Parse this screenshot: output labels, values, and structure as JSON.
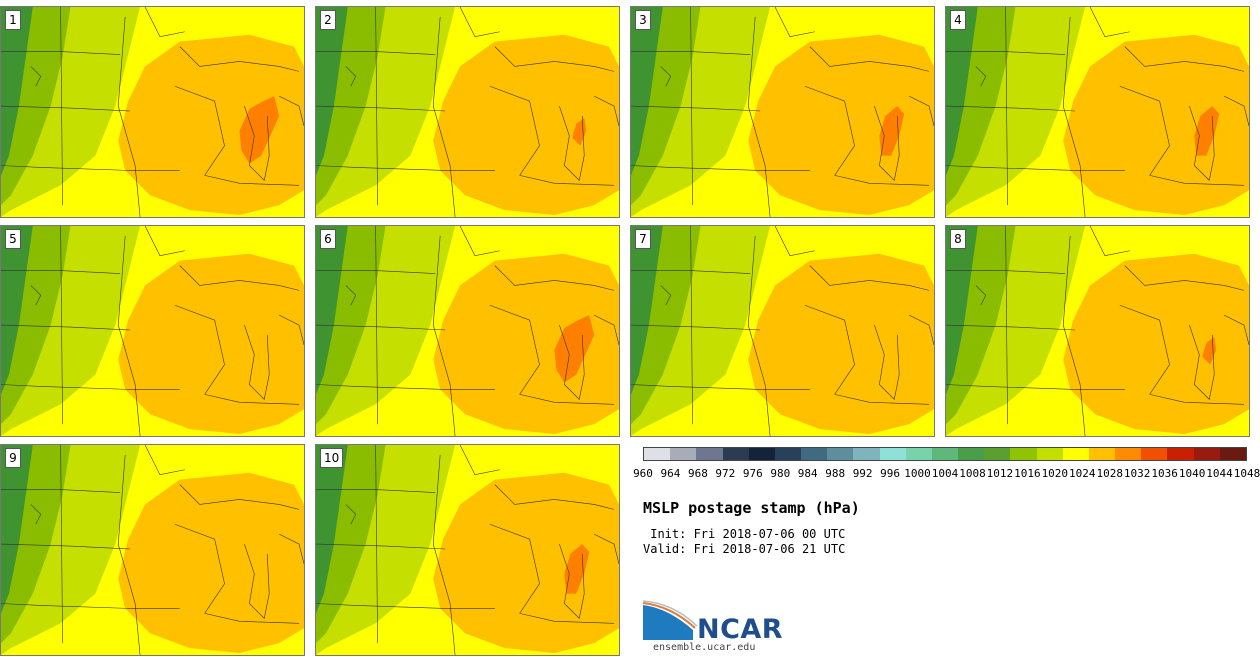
{
  "panels": [
    {
      "label": "1",
      "hot": "strong"
    },
    {
      "label": "2",
      "hot": "weak"
    },
    {
      "label": "3",
      "hot": "medium"
    },
    {
      "label": "4",
      "hot": "medium"
    },
    {
      "label": "5",
      "hot": "none"
    },
    {
      "label": "6",
      "hot": "strong"
    },
    {
      "label": "7",
      "hot": "none"
    },
    {
      "label": "8",
      "hot": "weak"
    },
    {
      "label": "9",
      "hot": "none"
    },
    {
      "label": "10",
      "hot": "medium"
    }
  ],
  "legend": {
    "ticks": [
      "960",
      "964",
      "968",
      "972",
      "976",
      "980",
      "984",
      "988",
      "992",
      "996",
      "1000",
      "1004",
      "1008",
      "1012",
      "1016",
      "1020",
      "1024",
      "1028",
      "1032",
      "1036",
      "1040",
      "1044",
      "1048"
    ],
    "colors": [
      "#dde0e6",
      "#a8acb8",
      "#6e7790",
      "#2c3a52",
      "#15233a",
      "#28405a",
      "#406a80",
      "#5e8e9e",
      "#7fb4bd",
      "#8fe0d6",
      "#78d3aa",
      "#5fb87a",
      "#4a9e4a",
      "#5aa030",
      "#8ec400",
      "#c2e000",
      "#ffff00",
      "#ffc000",
      "#ff8c00",
      "#f05000",
      "#c82000",
      "#9a1a10",
      "#6a1a10"
    ]
  },
  "title": "MSLP postage stamp (hPa)",
  "init": " Init: Fri 2018-07-06 00 UTC",
  "valid": "Valid: Fri 2018-07-06 21 UTC",
  "logo": {
    "name": "NCAR",
    "url": "ensemble.ucar.edu"
  },
  "colors": {
    "dark_green": "#3f9330",
    "mid_green": "#8abd00",
    "light_green": "#c5e000",
    "yellow": "#ffff00",
    "orange": "#ffc000",
    "dark_orange": "#ff8000",
    "map_line": "#333333"
  }
}
